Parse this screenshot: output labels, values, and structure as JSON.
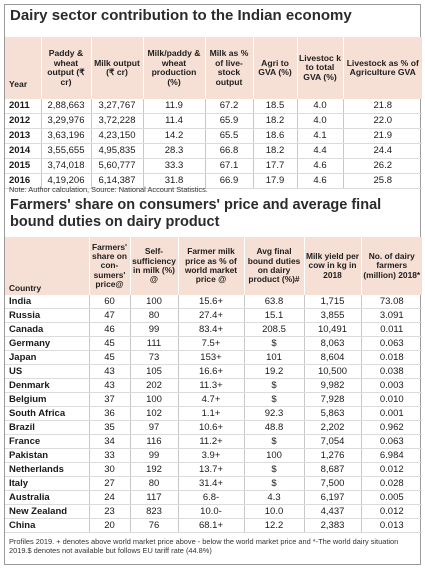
{
  "table1": {
    "title": "Dairy sector contribution to the Indian economy",
    "headers": [
      "Year",
      "Paddy & wheat output (₹ cr)",
      "Milk output (₹ cr)",
      "Milk/paddy & wheat production (%)",
      "Milk as % of live- stock output",
      "Agri to GVA (%)",
      "Livestoc k to total GVA (%)",
      "Livestock as % of Agriculture GVA"
    ],
    "rows": [
      [
        "2011",
        "2,88,663",
        "3,27,767",
        "11.9",
        "67.2",
        "18.5",
        "4.0",
        "21.8"
      ],
      [
        "2012",
        "3,29,976",
        "3,72,228",
        "11.4",
        "65.9",
        "18.2",
        "4.0",
        "22.0"
      ],
      [
        "2013",
        "3,63,196",
        "4,23,150",
        "14.2",
        "65.5",
        "18.6",
        "4.1",
        "21.9"
      ],
      [
        "2014",
        "3,55,655",
        "4,95,835",
        "28.3",
        "66.8",
        "18.2",
        "4.4",
        "24.4"
      ],
      [
        "2015",
        "3,74,018",
        "5,60,777",
        "33.3",
        "67.1",
        "17.7",
        "4.6",
        "26.2"
      ],
      [
        "2016",
        "4,19,206",
        "6,14,387",
        "31.8",
        "66.9",
        "17.9",
        "4.6",
        "25.8"
      ]
    ],
    "note": "Note: Author calculation, Source: National Account Statistics."
  },
  "table2": {
    "title": "Farmers' share on consumers' price and average final bound duties on dairy product",
    "headers": [
      "Country",
      "Farmers' share on con- sumers' price@",
      "Self- sufficiency in milk (%) @",
      "Farmer milk price as % of world market price @",
      "Avg final bound duties on dairy product (%)#",
      "Milk yield per cow in kg in 2018",
      "No. of dairy farmers (million) 2018*"
    ],
    "rows": [
      [
        "India",
        "60",
        "100",
        "15.6+",
        "63.8",
        "1,715",
        "73.08"
      ],
      [
        "Russia",
        "47",
        "80",
        "27.4+",
        "15.1",
        "3,855",
        "3.091"
      ],
      [
        "Canada",
        "46",
        "99",
        "83.4+",
        "208.5",
        "10,491",
        "0.011"
      ],
      [
        "Germany",
        "45",
        "111",
        "7.5+",
        "$",
        "8,063",
        "0.063"
      ],
      [
        "Japan",
        "45",
        "73",
        "153+",
        "101",
        "8,604",
        "0.018"
      ],
      [
        "US",
        "43",
        "105",
        "16.6+",
        "19.2",
        "10,500",
        "0.038"
      ],
      [
        "Denmark",
        "43",
        "202",
        "11.3+",
        "$",
        "9,982",
        "0.003"
      ],
      [
        "Belgium",
        "37",
        "100",
        "4.7+",
        "$",
        "7,928",
        "0.010"
      ],
      [
        "South Africa",
        "36",
        "102",
        "1.1+",
        "92.3",
        "5,863",
        "0.001"
      ],
      [
        "Brazil",
        "35",
        "97",
        "10.6+",
        "48.8",
        "2,202",
        "0.962"
      ],
      [
        "France",
        "34",
        "116",
        "11.2+",
        "$",
        "7,054",
        "0.063"
      ],
      [
        "Pakistan",
        "33",
        "99",
        "3.9+",
        "100",
        "1,276",
        "6.984"
      ],
      [
        "Netherlands",
        "30",
        "192",
        "13.7+",
        "$",
        "8,687",
        "0.012"
      ],
      [
        "Italy",
        "27",
        "80",
        "31.4+",
        "$",
        "7,500",
        "0.028"
      ],
      [
        "Australia",
        "24",
        "117",
        "6.8-",
        "4.3",
        "6,197",
        "0.005"
      ],
      [
        "New Zealand",
        "23",
        "823",
        "10.0-",
        "10.0",
        "4,437",
        "0.012"
      ],
      [
        "China",
        "20",
        "76",
        "68.1+",
        "12.2",
        "2,383",
        "0.013"
      ]
    ],
    "note": "Profiles 2019. + denotes above world market price above - below the world market price and *-The world dairy situation 2019.$ denotes not available but follows EU tariff rate (44.8%)"
  }
}
